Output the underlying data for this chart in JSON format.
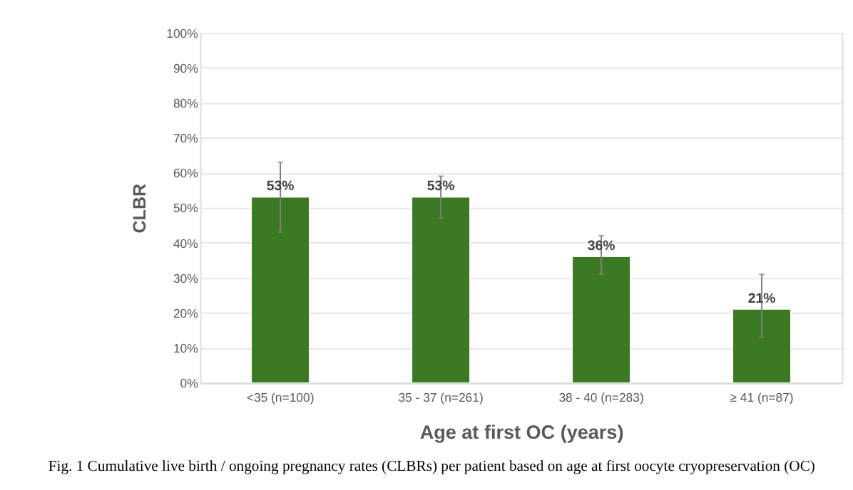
{
  "chart_data": {
    "type": "bar",
    "categories": [
      "<35 (n=100)",
      "35 - 37 (n=261)",
      "38 - 40 (n=283)",
      "≥ 41 (n=87)"
    ],
    "values": [
      53,
      53,
      36,
      21
    ],
    "value_labels": [
      "53%",
      "53%",
      "36%",
      "21%"
    ],
    "errors": [
      [
        43,
        63
      ],
      [
        47,
        59
      ],
      [
        31,
        42
      ],
      [
        13,
        31
      ]
    ],
    "color": "#3b7a23",
    "xlabel": "Age at first OC (years)",
    "ylabel": "CLBR",
    "ylim": [
      0,
      100
    ],
    "yticks": [
      {
        "value": 0,
        "label": "0%"
      },
      {
        "value": 10,
        "label": "10%"
      },
      {
        "value": 20,
        "label": "20%"
      },
      {
        "value": 30,
        "label": "30%"
      },
      {
        "value": 40,
        "label": "40%"
      },
      {
        "value": 50,
        "label": "50%"
      },
      {
        "value": 60,
        "label": "60%"
      },
      {
        "value": 70,
        "label": "70%"
      },
      {
        "value": 80,
        "label": "80%"
      },
      {
        "value": 90,
        "label": "90%"
      },
      {
        "value": 100,
        "label": "100%"
      }
    ],
    "grid": "y",
    "annotations": [
      "Fig. 1  Cumulative live birth / ongoing pregnancy rates (CLBRs) per patient based on age at first oocyte cryopreservation (OC)"
    ]
  }
}
